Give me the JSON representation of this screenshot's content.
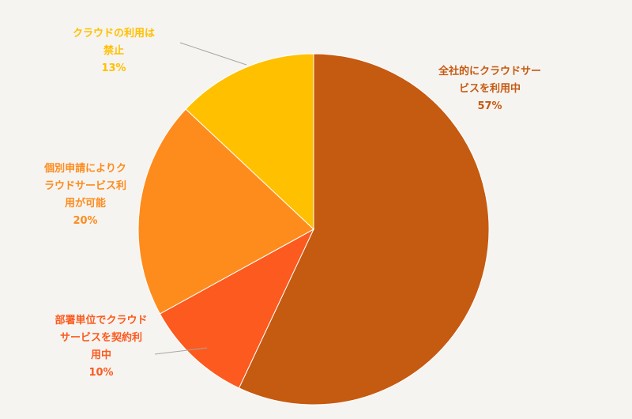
{
  "chart_data": {
    "type": "pie",
    "title": "",
    "legend": "none",
    "slices": [
      {
        "label_lines": [
          "全社的にクラウドサー",
          "ビスを利用中"
        ],
        "percent_label": "57%",
        "value": 57,
        "color": "#c55a11"
      },
      {
        "label_lines": [
          "部署単位でクラウド",
          "サービスを契約利",
          "用中"
        ],
        "percent_label": "10%",
        "value": 10,
        "color": "#fc5a1e"
      },
      {
        "label_lines": [
          "個別申請によりク",
          "ラウドサービス利",
          "用が可能"
        ],
        "percent_label": "20%",
        "value": 20,
        "color": "#fd8c1d"
      },
      {
        "label_lines": [
          "クラウドの利用は",
          "禁止"
        ],
        "percent_label": "13%",
        "value": 13,
        "color": "#ffc000"
      }
    ]
  }
}
